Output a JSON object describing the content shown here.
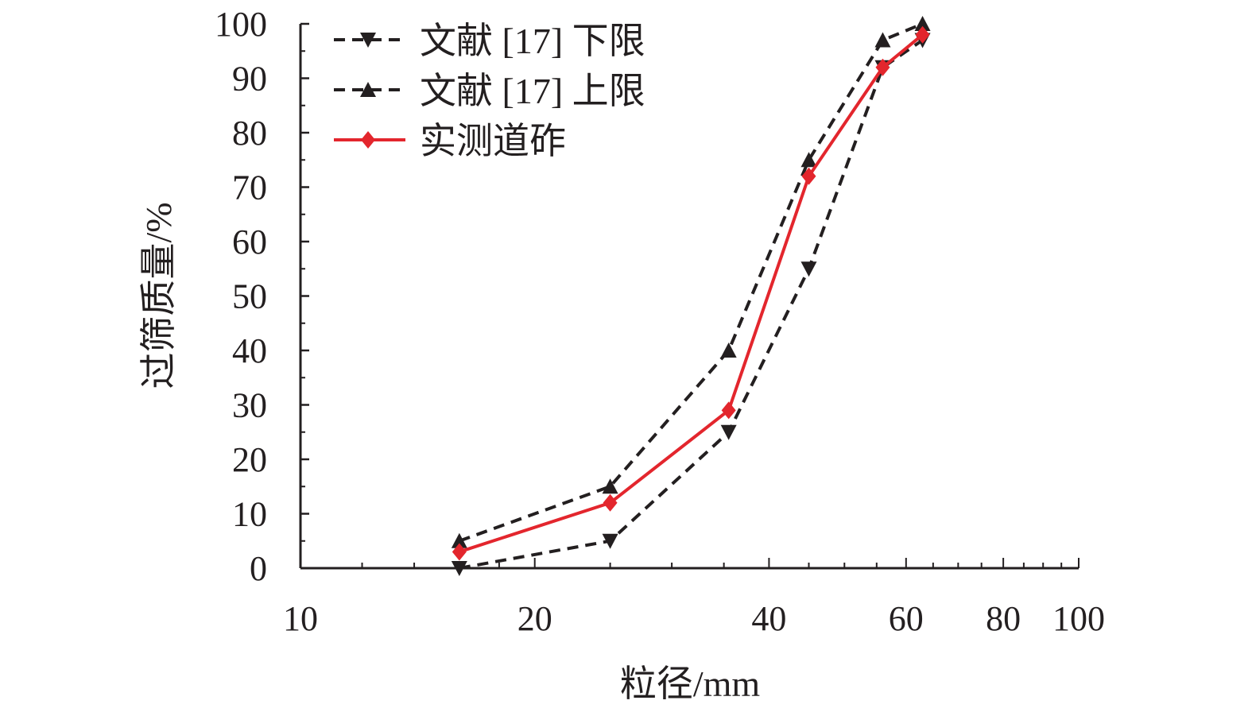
{
  "chart_data": {
    "type": "line",
    "title": "",
    "xlabel": "粒径/mm",
    "ylabel": "过筛质量/%",
    "xscale": "log",
    "xlim": [
      10,
      100
    ],
    "ylim": [
      0,
      100
    ],
    "xticks": [
      10,
      20,
      40,
      60,
      80,
      100
    ],
    "yticks": [
      0,
      10,
      20,
      30,
      40,
      50,
      60,
      70,
      80,
      90,
      100
    ],
    "grid": false,
    "legend_position": "top-left",
    "x": [
      16,
      25,
      35.5,
      45,
      56,
      63
    ],
    "series": [
      {
        "name": "文献 [17] 下限",
        "values": [
          0,
          5,
          25,
          55,
          92,
          97
        ],
        "color": "#231f20",
        "dash": true,
        "marker": "triangle-down"
      },
      {
        "name": "文献 [17] 上限",
        "values": [
          5,
          15,
          40,
          75,
          97,
          100
        ],
        "color": "#231f20",
        "dash": true,
        "marker": "triangle-up"
      },
      {
        "name": "实测道砟",
        "values": [
          3,
          12,
          29,
          72,
          92,
          98
        ],
        "color": "#e3262d",
        "dash": false,
        "marker": "diamond"
      }
    ]
  }
}
